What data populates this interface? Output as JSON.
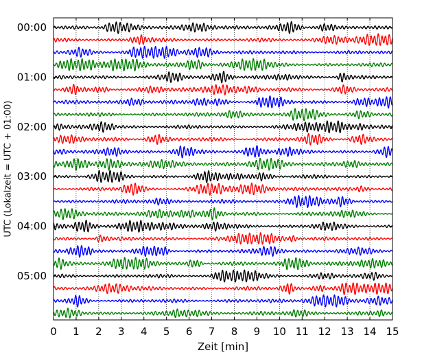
{
  "chart_data": {
    "type": "line",
    "title": "",
    "xlabel": "Zeit  [min]",
    "ylabel": "UTC (Lokalzeit = UTC + 01:00)",
    "xlim": [
      0,
      15
    ],
    "x_ticks": [
      "0",
      "1",
      "2",
      "3",
      "4",
      "5",
      "6",
      "7",
      "8",
      "9",
      "10",
      "11",
      "12",
      "13",
      "14",
      "15"
    ],
    "y_tick_labels": [
      "00:00",
      "01:00",
      "02:00",
      "03:00",
      "04:00",
      "05:00"
    ],
    "row_interval_minutes": 15,
    "row_count": 24,
    "series_colors": [
      "#000000",
      "#ff0000",
      "#0000ff",
      "#007f00"
    ],
    "grid_x": "dotted",
    "legend": "none",
    "rows": [
      {
        "start": "00:00",
        "color": "#000000"
      },
      {
        "start": "00:15",
        "color": "#ff0000"
      },
      {
        "start": "00:30",
        "color": "#0000ff"
      },
      {
        "start": "00:45",
        "color": "#007f00"
      },
      {
        "start": "01:00",
        "color": "#000000"
      },
      {
        "start": "01:15",
        "color": "#ff0000"
      },
      {
        "start": "01:30",
        "color": "#0000ff"
      },
      {
        "start": "01:45",
        "color": "#007f00"
      },
      {
        "start": "02:00",
        "color": "#000000"
      },
      {
        "start": "02:15",
        "color": "#ff0000"
      },
      {
        "start": "02:30",
        "color": "#0000ff"
      },
      {
        "start": "02:45",
        "color": "#007f00"
      },
      {
        "start": "03:00",
        "color": "#000000"
      },
      {
        "start": "03:15",
        "color": "#ff0000"
      },
      {
        "start": "03:30",
        "color": "#0000ff"
      },
      {
        "start": "03:45",
        "color": "#007f00"
      },
      {
        "start": "04:00",
        "color": "#000000"
      },
      {
        "start": "04:15",
        "color": "#ff0000"
      },
      {
        "start": "04:30",
        "color": "#0000ff"
      },
      {
        "start": "04:45",
        "color": "#007f00"
      },
      {
        "start": "05:00",
        "color": "#000000"
      },
      {
        "start": "05:15",
        "color": "#ff0000"
      },
      {
        "start": "05:30",
        "color": "#0000ff"
      },
      {
        "start": "05:45",
        "color": "#007f00"
      }
    ]
  }
}
